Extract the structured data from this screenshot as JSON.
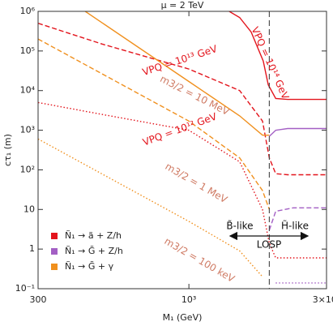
{
  "chart_data": {
    "type": "line",
    "title": "μ = 2 TeV",
    "x_label": "M₁ (GeV)",
    "y_label": "cτ₁ (m)",
    "log_x": true,
    "log_y": true,
    "xlim": [
      300,
      3000
    ],
    "ylim": [
      0.1,
      1000000
    ],
    "xticks": [
      300,
      {
        "value": 1000,
        "label": "10³"
      },
      {
        "value": 3000,
        "label": "3×10³"
      }
    ],
    "yticks": [
      {
        "value": 0.1,
        "label": "10⁻¹"
      },
      1,
      10,
      {
        "value": 100,
        "label": "10²"
      },
      {
        "value": 1000,
        "label": "10³"
      },
      {
        "value": 10000,
        "label": "10⁴"
      },
      {
        "value": 100000,
        "label": "10⁵"
      },
      {
        "value": 1000000,
        "label": "10⁶"
      }
    ],
    "vline": 1900,
    "legend": [
      {
        "name": "Ñ₁ → ã + Z/h",
        "color": "#e3141c"
      },
      {
        "name": "Ñ₁ → G̃ + Z/h",
        "color": "#a35fc4"
      },
      {
        "name": "Ñ₁ → G̃ + γ",
        "color": "#f0901e"
      }
    ],
    "series": [
      {
        "color": "#e3141c",
        "style": "solid",
        "x": [
          1380,
          1500,
          1644,
          1810,
          1884,
          2000,
          2200,
          3000
        ],
        "values": [
          1000000,
          700000,
          300000,
          56000,
          14000,
          6300,
          6000,
          6000
        ]
      },
      {
        "color": "#e3141c",
        "style": "dashed",
        "x": [
          300,
          500,
          1000,
          1500,
          1800,
          1900,
          2000,
          2200,
          3000
        ],
        "values": [
          500000,
          150000,
          35000,
          10000,
          1700,
          200,
          80,
          75,
          75
        ]
      },
      {
        "color": "#e3141c",
        "style": "dotted",
        "x": [
          300,
          500,
          1000,
          1500,
          1800,
          1900,
          2000,
          2200,
          3000
        ],
        "values": [
          5000,
          2500,
          1000,
          160,
          10,
          1.4,
          0.6,
          0.6,
          0.6
        ]
      },
      {
        "color": "#f0901e",
        "style": "solid",
        "x": [
          437,
          1000,
          1500,
          1800,
          1900
        ],
        "values": [
          1000000,
          17000,
          2300,
          750,
          750
        ]
      },
      {
        "color": "#f0901e",
        "style": "dashed",
        "x": [
          300,
          1000,
          1500,
          1800,
          1900
        ],
        "values": [
          200000,
          1700,
          200,
          30,
          10
        ]
      },
      {
        "color": "#f0901e",
        "style": "dotted",
        "x": [
          300,
          1000,
          1500,
          1800
        ],
        "values": [
          600,
          5,
          0.9,
          0.2
        ]
      },
      {
        "color": "#a35fc4",
        "style": "solid",
        "x": [
          1900,
          2000,
          2200,
          3000
        ],
        "values": [
          700,
          1000,
          1100,
          1100
        ]
      },
      {
        "color": "#a35fc4",
        "style": "dashed",
        "x": [
          1900,
          2000,
          2300,
          3000
        ],
        "values": [
          3,
          9,
          11,
          11
        ]
      },
      {
        "color": "#a35fc4",
        "style": "dotted",
        "x": [
          2000,
          2200,
          3000
        ],
        "values": [
          0.14,
          0.14,
          0.14
        ]
      }
    ],
    "annotations": [
      {
        "text": "VPQ = 10¹⁴ GeV",
        "color": "#e3141c"
      },
      {
        "text": "VPQ = 10¹³ GeV",
        "color": "#e3141c"
      },
      {
        "text": "m3/2 = 10 MeV",
        "color": "#cf7a63"
      },
      {
        "text": "VPQ = 10¹² GeV",
        "color": "#e3141c"
      },
      {
        "text": "m3/2 = 1 MeV",
        "color": "#cf7a63"
      },
      {
        "text": "m3/2 = 100 keV",
        "color": "#cf7a63"
      },
      {
        "text": "B̃-like",
        "color": "#111111"
      },
      {
        "text": "H̃-like",
        "color": "#111111"
      },
      {
        "text": "LOSP",
        "color": "#111111"
      }
    ]
  }
}
